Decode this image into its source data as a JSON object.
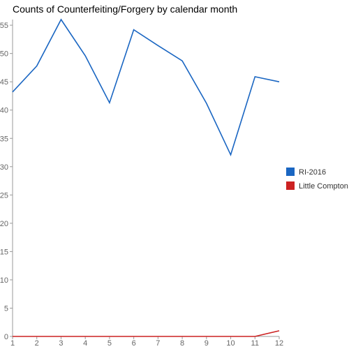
{
  "chart_data": {
    "type": "line",
    "title": "Counts of Counterfeiting/Forgery by calendar month",
    "xlabel": "",
    "ylabel": "",
    "x": [
      1,
      2,
      3,
      4,
      5,
      6,
      7,
      8,
      9,
      10,
      11,
      12
    ],
    "ylim": [
      0,
      56
    ],
    "yticks": [
      0,
      5,
      10,
      15,
      20,
      25,
      30,
      35,
      40,
      45,
      50,
      55
    ],
    "grid": false,
    "legend_position": "right",
    "series": [
      {
        "name": "RI-2016",
        "color": "#1a66c2",
        "values": [
          43.2,
          47.8,
          56.0,
          49.6,
          41.3,
          54.2,
          51.4,
          48.7,
          41.2,
          32.1,
          45.9,
          45.0
        ]
      },
      {
        "name": "Little Compton",
        "color": "#cc2222",
        "values": [
          0,
          0,
          0,
          0,
          0,
          0,
          0,
          0,
          0,
          0,
          0,
          1
        ]
      }
    ]
  }
}
